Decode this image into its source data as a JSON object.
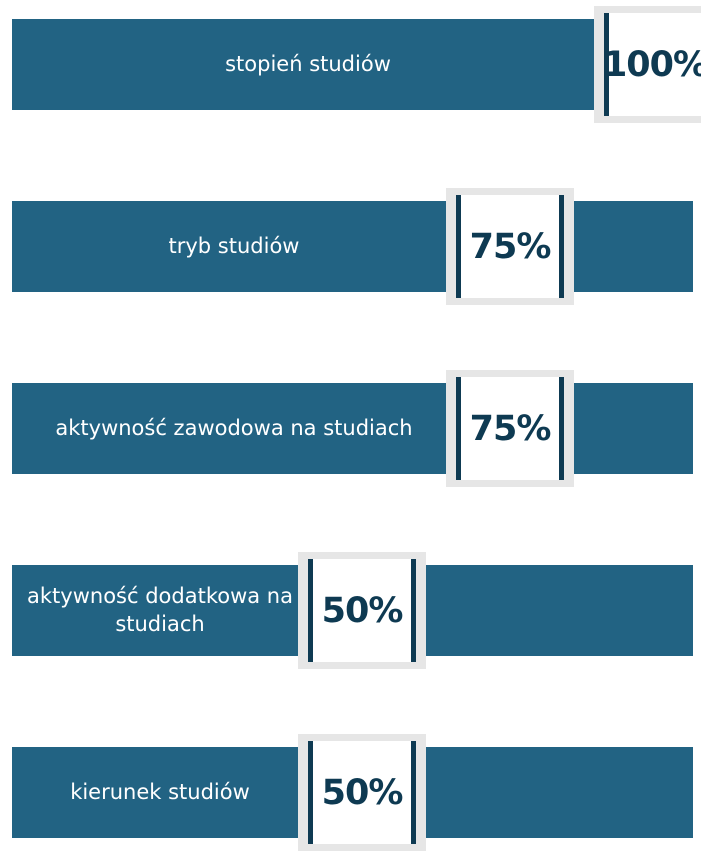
{
  "chart_data": {
    "type": "bar",
    "categories": [
      "stopień studiów",
      "tryb studiów",
      "aktywność zawodowa na studiach",
      "aktywność dodatkowa na studiach",
      "kierunek studiów"
    ],
    "values": [
      100,
      75,
      75,
      50,
      50
    ],
    "value_labels": [
      "100%",
      "75%",
      "75%",
      "50%",
      "50%"
    ],
    "color": "#226383"
  }
}
